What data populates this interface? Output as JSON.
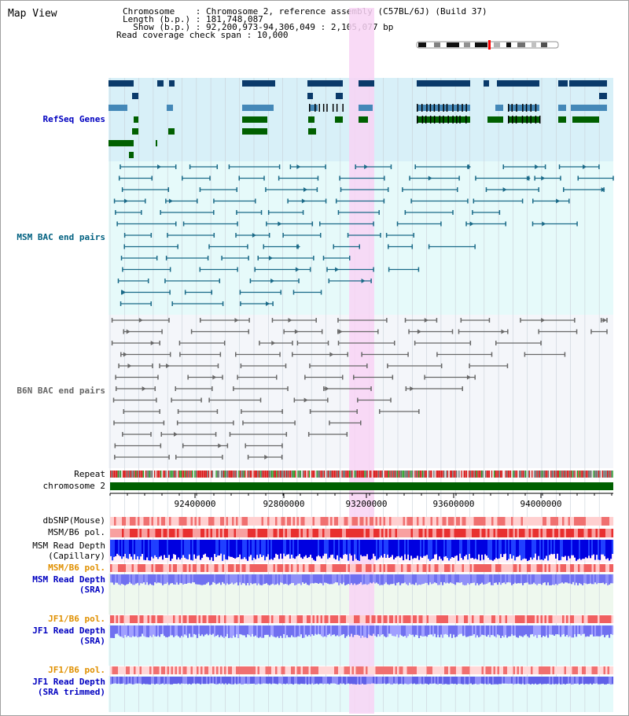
{
  "header": {
    "title": "Map View",
    "chromosome_line": "Chromosome    : Chromosome 2, reference assembly (C57BL/6J) (Build 37)",
    "length_line": "Length (b.p.) : 181,748,087",
    "show_line": "  Show (b.p.) : 92,200,973-94,306,049 : 2,105,077 bp",
    "coverage_line": "Read coverage check span : 10,000"
  },
  "tracks": {
    "refseq": "RefSeq Genes",
    "msm_bac": "MSM BAC end pairs",
    "b6n_bac": "B6N BAC end pairs",
    "repeat": "Repeat",
    "chromosome": "chromosome 2",
    "dbsnp": "dbSNP(Mouse)",
    "msm_b6_pol": "MSM/B6 pol.",
    "msm_depth_1": "MSM Read Depth",
    "msm_depth_2": "(Capillary)",
    "msm_b6_pol_sra": "MSM/B6 pol.",
    "msm_depth_sra_1": "MSM Read Depth",
    "msm_depth_sra_2": "(SRA)",
    "jf1_pol": "JF1/B6 pol.",
    "jf1_depth_1": "JF1 Read Depth",
    "jf1_depth_2": "(SRA)",
    "jf1_pol_trim": "JF1/B6 pol.",
    "jf1_depth_trim_1": "JF1 Read Depth",
    "jf1_depth_trim_2": "(SRA trimmed)"
  },
  "axis": {
    "ticks": [
      "92400000",
      "92800000",
      "93200000",
      "93600000",
      "94000000"
    ]
  },
  "colors": {
    "refseq_bg": "#d8f0f8",
    "bac_bg": "#e6fafa",
    "b6n_bg": "#f4f6fa",
    "highlight": "#f8d4f4",
    "refseq_label": "#0000c0",
    "msm_label": "#006080",
    "b6n_label": "#555555",
    "pol_orange": "#e09000",
    "depth_blue": "#0000c0"
  }
}
